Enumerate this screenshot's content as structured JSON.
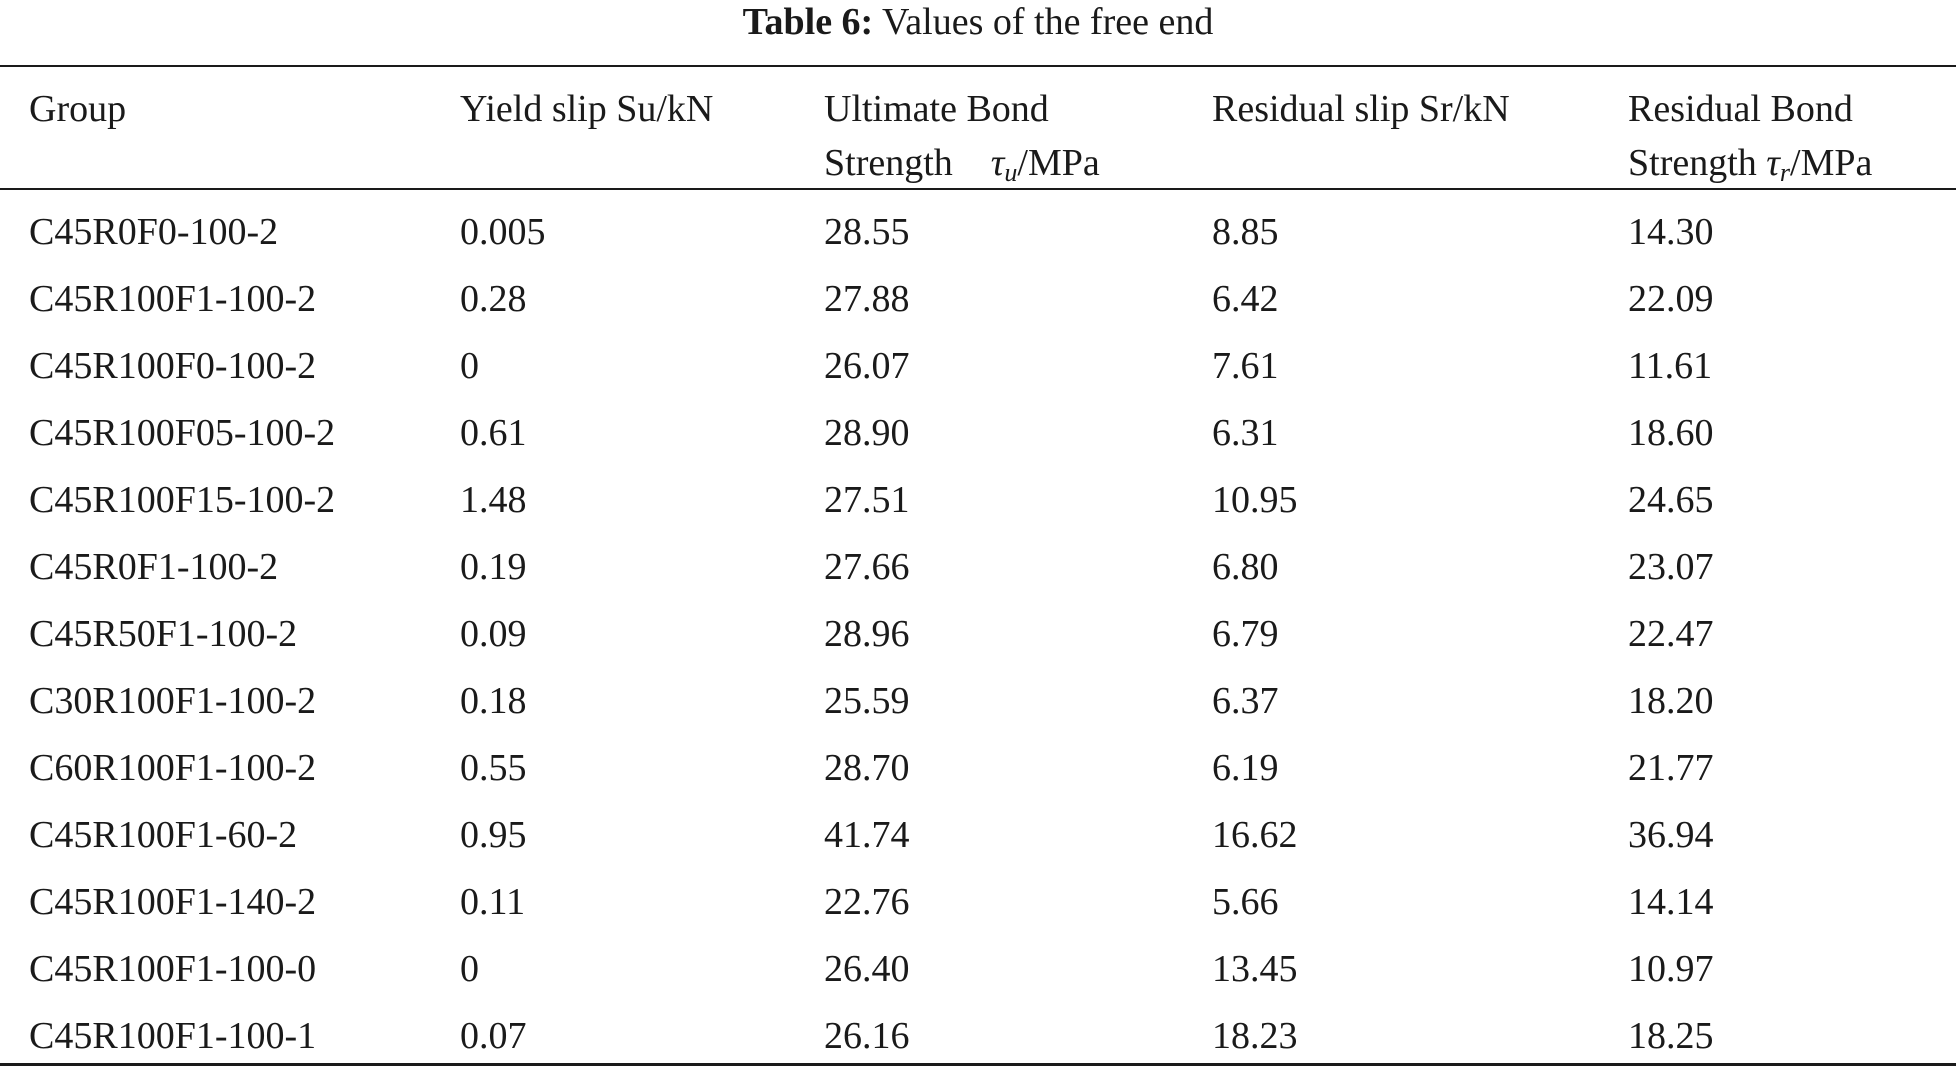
{
  "caption": {
    "label": "Table 6:",
    "text": "Values of the free end"
  },
  "header": {
    "group": "Group",
    "yield_slip": "Yield slip Su/kN",
    "ultimate_line1": "Ultimate Bond",
    "ultimate_strength": "Strength",
    "ultimate_symbol": "τ",
    "ultimate_sub": "u",
    "ultimate_unit": "/MPa",
    "residual_slip": "Residual slip Sr/kN",
    "residual_line1": "Residual Bond",
    "residual_strength": "Strength",
    "residual_symbol": "τ",
    "residual_sub": "r",
    "residual_unit": "/MPa"
  },
  "rows": [
    [
      "C45R0F0-100-2",
      "0.005",
      "28.55",
      "8.85",
      "14.30"
    ],
    [
      "C45R100F1-100-2",
      "0.28",
      "27.88",
      "6.42",
      "22.09"
    ],
    [
      "C45R100F0-100-2",
      "0",
      "26.07",
      "7.61",
      "11.61"
    ],
    [
      "C45R100F05-100-2",
      "0.61",
      "28.90",
      "6.31",
      "18.60"
    ],
    [
      "C45R100F15-100-2",
      "1.48",
      "27.51",
      "10.95",
      "24.65"
    ],
    [
      "C45R0F1-100-2",
      "0.19",
      "27.66",
      "6.80",
      "23.07"
    ],
    [
      "C45R50F1-100-2",
      "0.09",
      "28.96",
      "6.79",
      "22.47"
    ],
    [
      "C30R100F1-100-2",
      "0.18",
      "25.59",
      "6.37",
      "18.20"
    ],
    [
      "C60R100F1-100-2",
      "0.55",
      "28.70",
      "6.19",
      "21.77"
    ],
    [
      "C45R100F1-60-2",
      "0.95",
      "41.74",
      "16.62",
      "36.94"
    ],
    [
      "C45R100F1-140-2",
      "0.11",
      "22.76",
      "5.66",
      "14.14"
    ],
    [
      "C45R100F1-100-0",
      "0",
      "26.40",
      "13.45",
      "10.97"
    ],
    [
      "C45R100F1-100-1",
      "0.07",
      "26.16",
      "18.23",
      "18.25"
    ]
  ]
}
